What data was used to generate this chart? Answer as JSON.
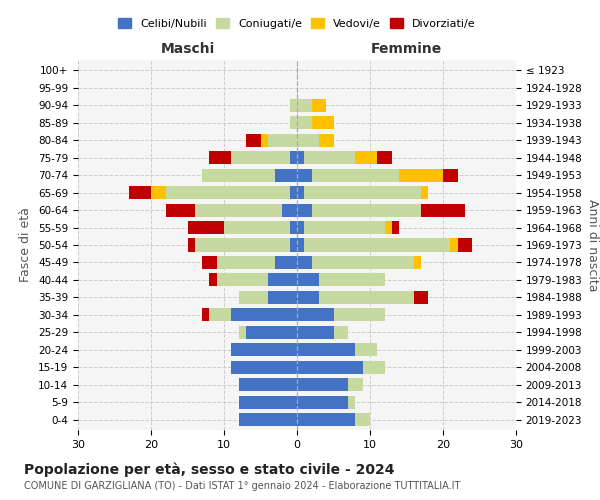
{
  "age_groups": [
    "0-4",
    "5-9",
    "10-14",
    "15-19",
    "20-24",
    "25-29",
    "30-34",
    "35-39",
    "40-44",
    "45-49",
    "50-54",
    "55-59",
    "60-64",
    "65-69",
    "70-74",
    "75-79",
    "80-84",
    "85-89",
    "90-94",
    "95-99",
    "100+"
  ],
  "birth_years": [
    "2019-2023",
    "2014-2018",
    "2009-2013",
    "2004-2008",
    "1999-2003",
    "1994-1998",
    "1989-1993",
    "1984-1988",
    "1979-1983",
    "1974-1978",
    "1969-1973",
    "1964-1968",
    "1959-1963",
    "1954-1958",
    "1949-1953",
    "1944-1948",
    "1939-1943",
    "1934-1938",
    "1929-1933",
    "1924-1928",
    "≤ 1923"
  ],
  "male": {
    "celibi": [
      8,
      8,
      8,
      9,
      9,
      7,
      9,
      4,
      4,
      3,
      1,
      1,
      2,
      1,
      3,
      1,
      0,
      0,
      0,
      0,
      0
    ],
    "coniugati": [
      0,
      0,
      0,
      0,
      0,
      1,
      3,
      4,
      7,
      8,
      13,
      9,
      12,
      17,
      10,
      8,
      4,
      1,
      1,
      0,
      0
    ],
    "vedovi": [
      0,
      0,
      0,
      0,
      0,
      0,
      0,
      0,
      0,
      0,
      0,
      0,
      0,
      2,
      0,
      0,
      1,
      0,
      0,
      0,
      0
    ],
    "divorziati": [
      0,
      0,
      0,
      0,
      0,
      0,
      1,
      0,
      1,
      2,
      1,
      5,
      4,
      3,
      0,
      3,
      2,
      0,
      0,
      0,
      0
    ]
  },
  "female": {
    "nubili": [
      8,
      7,
      7,
      9,
      8,
      5,
      5,
      3,
      3,
      2,
      1,
      1,
      2,
      1,
      2,
      1,
      0,
      0,
      0,
      0,
      0
    ],
    "coniugate": [
      2,
      1,
      2,
      3,
      3,
      2,
      7,
      13,
      9,
      14,
      20,
      11,
      15,
      16,
      12,
      7,
      3,
      2,
      2,
      0,
      0
    ],
    "vedove": [
      0,
      0,
      0,
      0,
      0,
      0,
      0,
      0,
      0,
      1,
      1,
      1,
      0,
      1,
      6,
      3,
      2,
      3,
      2,
      0,
      0
    ],
    "divorziate": [
      0,
      0,
      0,
      0,
      0,
      0,
      0,
      2,
      0,
      0,
      2,
      1,
      6,
      0,
      2,
      2,
      0,
      0,
      0,
      0,
      0
    ]
  },
  "color_celibi": "#4472c4",
  "color_coniugati": "#c5d9a0",
  "color_vedovi": "#ffc000",
  "color_divorziati": "#c00000",
  "title": "Popolazione per età, sesso e stato civile - 2024",
  "subtitle": "COMUNE DI GARZIGLIANA (TO) - Dati ISTAT 1° gennaio 2024 - Elaborazione TUTTITALIA.IT",
  "xlabel_left": "Maschi",
  "xlabel_right": "Femmine",
  "ylabel_left": "Fasce di età",
  "ylabel_right": "Anni di nascita",
  "xlim": 30,
  "bg_color": "#ffffff",
  "grid_color": "#cccccc",
  "bar_height": 0.75
}
